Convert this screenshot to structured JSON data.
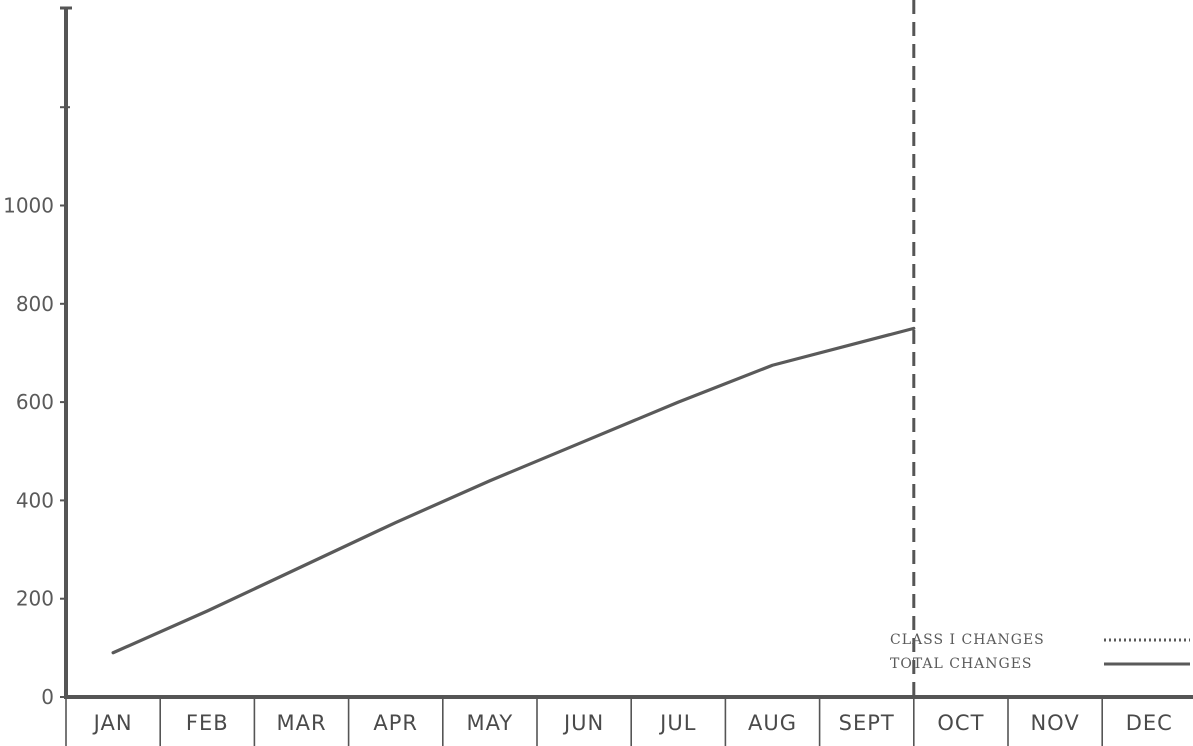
{
  "chart_data": {
    "type": "line",
    "categories": [
      "JAN",
      "FEB",
      "MAR",
      "APR",
      "MAY",
      "JUN",
      "JUL",
      "AUG",
      "SEPT",
      "OCT",
      "NOV",
      "DEC"
    ],
    "y_ticks": [
      "0",
      "200",
      "400",
      "600",
      "800",
      "1000"
    ],
    "ylim": [
      0,
      1300
    ],
    "series": [
      {
        "name": "TOTAL CHANGES",
        "style": "solid",
        "points": [
          {
            "x": "JAN",
            "y": 90
          },
          {
            "x": "FEB",
            "y": 175
          },
          {
            "x": "MAR",
            "y": 265
          },
          {
            "x": "APR",
            "y": 355
          },
          {
            "x": "MAY",
            "y": 440
          },
          {
            "x": "JUN",
            "y": 520
          },
          {
            "x": "JUL",
            "y": 600
          },
          {
            "x": "AUG",
            "y": 675
          },
          {
            "x": "SEPT",
            "y": 750
          }
        ]
      }
    ],
    "legend": [
      {
        "label": "CLASS I CHANGES",
        "style": "dotted"
      },
      {
        "label": "TOTAL CHANGES",
        "style": "solid"
      }
    ],
    "reference_line": {
      "position": "end of SEPT",
      "style": "dashed"
    },
    "legend_position": "bottom-right",
    "grid": false,
    "colors": {
      "line": "#5a5a5a",
      "axis": "#555555",
      "background": "#ffffff"
    }
  }
}
